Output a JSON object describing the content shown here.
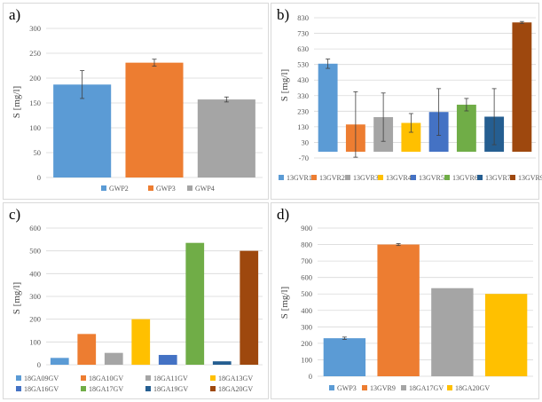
{
  "chart_data": [
    {
      "id": "a",
      "panel_label": "a)",
      "type": "bar",
      "ylabel": "S [mg/l]",
      "ylim": [
        0,
        300
      ],
      "yticks": [
        0,
        50,
        100,
        150,
        200,
        250,
        300
      ],
      "grid": true,
      "legend_position": "bottom",
      "series": [
        {
          "name": "GWP2",
          "value": 187,
          "error": 28,
          "color": "#5b9bd5"
        },
        {
          "name": "GWP3",
          "value": 231,
          "error": 7,
          "color": "#ed7d31"
        },
        {
          "name": "GWP4",
          "value": 157,
          "error": 5,
          "color": "#a5a5a5"
        }
      ]
    },
    {
      "id": "b",
      "panel_label": "b)",
      "type": "bar",
      "ylabel": "S [mg/l]",
      "ylim": [
        -70,
        830
      ],
      "yticks": [
        -70,
        30,
        130,
        230,
        330,
        430,
        530,
        630,
        730,
        830
      ],
      "grid": true,
      "legend_position": "bottom",
      "series": [
        {
          "name": "13GVR1",
          "value": 535,
          "error": 30,
          "color": "#5b9bd5"
        },
        {
          "name": "13GVR2",
          "value": 145,
          "error": 210,
          "color": "#ed7d31"
        },
        {
          "name": "13GVR3",
          "value": 192,
          "error": 155,
          "color": "#a5a5a5"
        },
        {
          "name": "13GVR4",
          "value": 155,
          "error": 60,
          "color": "#ffc000"
        },
        {
          "name": "13GVR5",
          "value": 225,
          "error": 150,
          "color": "#4472c4"
        },
        {
          "name": "13GVR6",
          "value": 272,
          "error": 40,
          "color": "#70ad47"
        },
        {
          "name": "13GVR7",
          "value": 195,
          "error": 180,
          "color": "#255e91"
        },
        {
          "name": "13GVR9",
          "value": 800,
          "error": 6,
          "color": "#9e480e"
        }
      ]
    },
    {
      "id": "c",
      "panel_label": "c)",
      "type": "bar",
      "ylabel": "S [mg/l]",
      "ylim": [
        0,
        600
      ],
      "yticks": [
        0,
        100,
        200,
        300,
        400,
        500,
        600
      ],
      "grid": true,
      "legend_position": "bottom",
      "series": [
        {
          "name": "18GA09GV",
          "value": 30,
          "color": "#5b9bd5"
        },
        {
          "name": "18GA10GV",
          "value": 135,
          "color": "#ed7d31"
        },
        {
          "name": "18GA11GV",
          "value": 52,
          "color": "#a5a5a5"
        },
        {
          "name": "18GA13GV",
          "value": 200,
          "color": "#ffc000"
        },
        {
          "name": "18GA16GV",
          "value": 43,
          "color": "#4472c4"
        },
        {
          "name": "18GA17GV",
          "value": 535,
          "color": "#70ad47"
        },
        {
          "name": "18GA19GV",
          "value": 15,
          "color": "#255e91"
        },
        {
          "name": "18GA20GV",
          "value": 500,
          "color": "#9e480e"
        }
      ]
    },
    {
      "id": "d",
      "panel_label": "d)",
      "type": "bar",
      "ylabel": "S [mg/l]",
      "ylim": [
        0,
        900
      ],
      "yticks": [
        0,
        100,
        200,
        300,
        400,
        500,
        600,
        700,
        800,
        900
      ],
      "grid": true,
      "legend_position": "bottom",
      "series": [
        {
          "name": "GWP3",
          "value": 231,
          "error": 7,
          "color": "#5b9bd5"
        },
        {
          "name": "13GVR9",
          "value": 800,
          "error": 6,
          "color": "#ed7d31"
        },
        {
          "name": "18GA17GV",
          "value": 535,
          "color": "#a5a5a5"
        },
        {
          "name": "18GA20GV",
          "value": 500,
          "color": "#ffc000"
        }
      ]
    }
  ]
}
